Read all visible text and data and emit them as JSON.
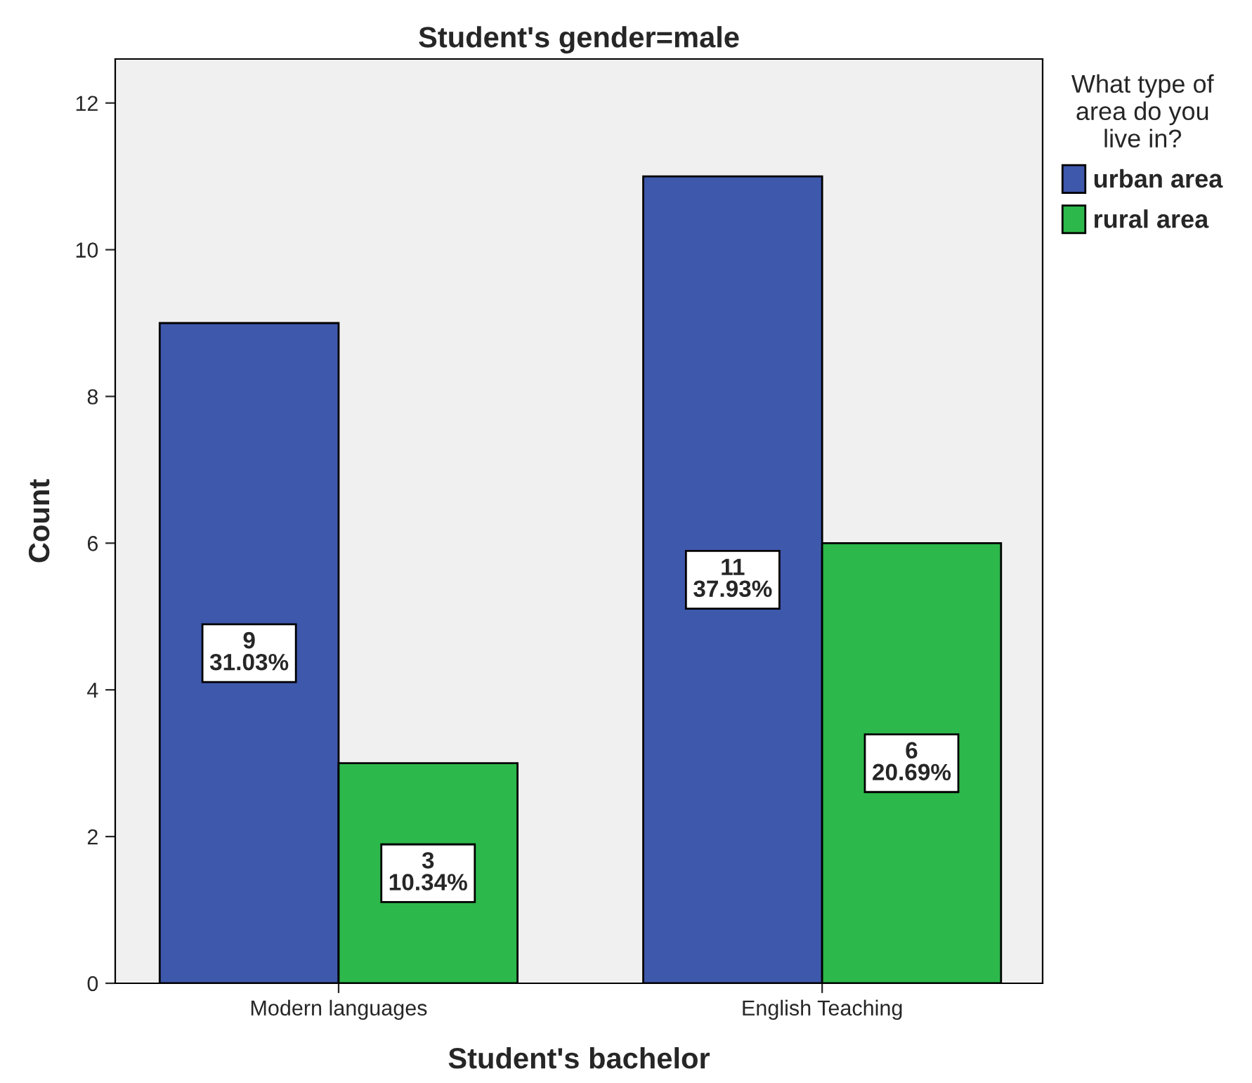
{
  "chart_data": {
    "type": "bar",
    "title": "Student's gender=male",
    "xlabel": "Student's bachelor",
    "ylabel": "Count",
    "legend_title": "What type of\narea do you\nlive in?",
    "categories": [
      "Modern languages",
      "English Teaching"
    ],
    "series": [
      {
        "name": "urban area",
        "color": "#3e58ac",
        "values": [
          9,
          11
        ],
        "value_labels": [
          "9\n31.03%",
          "11\n37.93%"
        ]
      },
      {
        "name": "rural area",
        "color": "#2db84b",
        "values": [
          3,
          6
        ],
        "value_labels": [
          "3\n10.34%",
          "6\n20.69%"
        ]
      }
    ],
    "ylim": [
      0,
      12.6
    ],
    "yticks": [
      0,
      2,
      4,
      6,
      8,
      10,
      12
    ],
    "grid": false,
    "legend": "right"
  }
}
